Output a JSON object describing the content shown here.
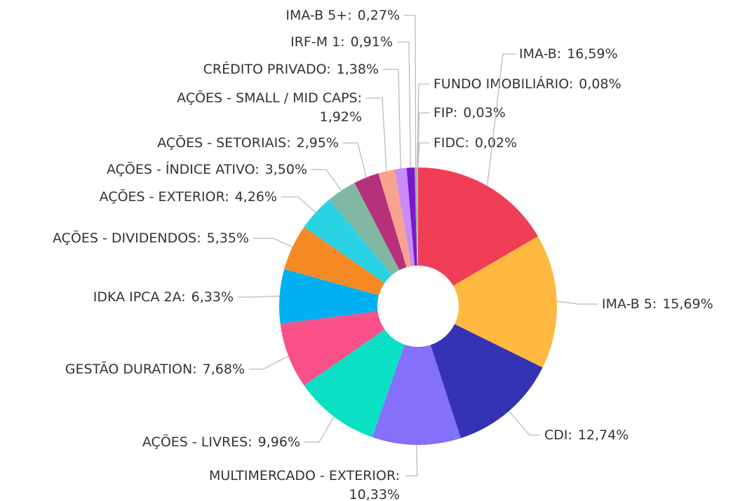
{
  "chart_data": {
    "type": "donut",
    "categories": [
      "IMA-B:",
      "IMA-B 5:",
      "CDI:",
      "MULTIMERCADO - EXTERIOR:",
      "AÇÕES - LIVRES:",
      "GESTÃO DURATION:",
      "IDKA IPCA 2A:",
      "AÇÕES - DIVIDENDOS:",
      "AÇÕES - EXTERIOR:",
      "AÇÕES - ÍNDICE ATIVO:",
      "AÇÕES - SETORIAIS:",
      "AÇÕES - SMALL / MID CAPS:",
      "CRÉDITO PRIVADO:",
      "IRF-M 1:",
      "IMA-B 5+:",
      "FUNDO IMOBILIÁRIO:",
      "FIP:",
      "FIDC:"
    ],
    "values": [
      16.59,
      15.69,
      12.74,
      10.33,
      9.96,
      7.68,
      6.33,
      5.35,
      4.26,
      3.5,
      2.95,
      1.92,
      1.38,
      0.91,
      0.27,
      0.08,
      0.03,
      0.02
    ],
    "value_labels": [
      "16,59%",
      "15,69%",
      "12,74%",
      "10,33%",
      "9,96%",
      "7,68%",
      "6,33%",
      "5,35%",
      "4,26%",
      "3,50%",
      "2,95%",
      "1,92%",
      "1,38%",
      "0,91%",
      "0,27%",
      "0,08%",
      "0,03%",
      "0,02%"
    ],
    "colors": [
      "#ef3e55",
      "#ffb840",
      "#3333b3",
      "#8470fa",
      "#0be0c4",
      "#f9508a",
      "#00b0f0",
      "#f58a25",
      "#29d3e4",
      "#80b8a4",
      "#b6307a",
      "#f9a38f",
      "#c78cf7",
      "#7a15d0",
      "#9aa9a0",
      "#c9c9c9",
      "#b0b0b0",
      "#999999"
    ]
  }
}
